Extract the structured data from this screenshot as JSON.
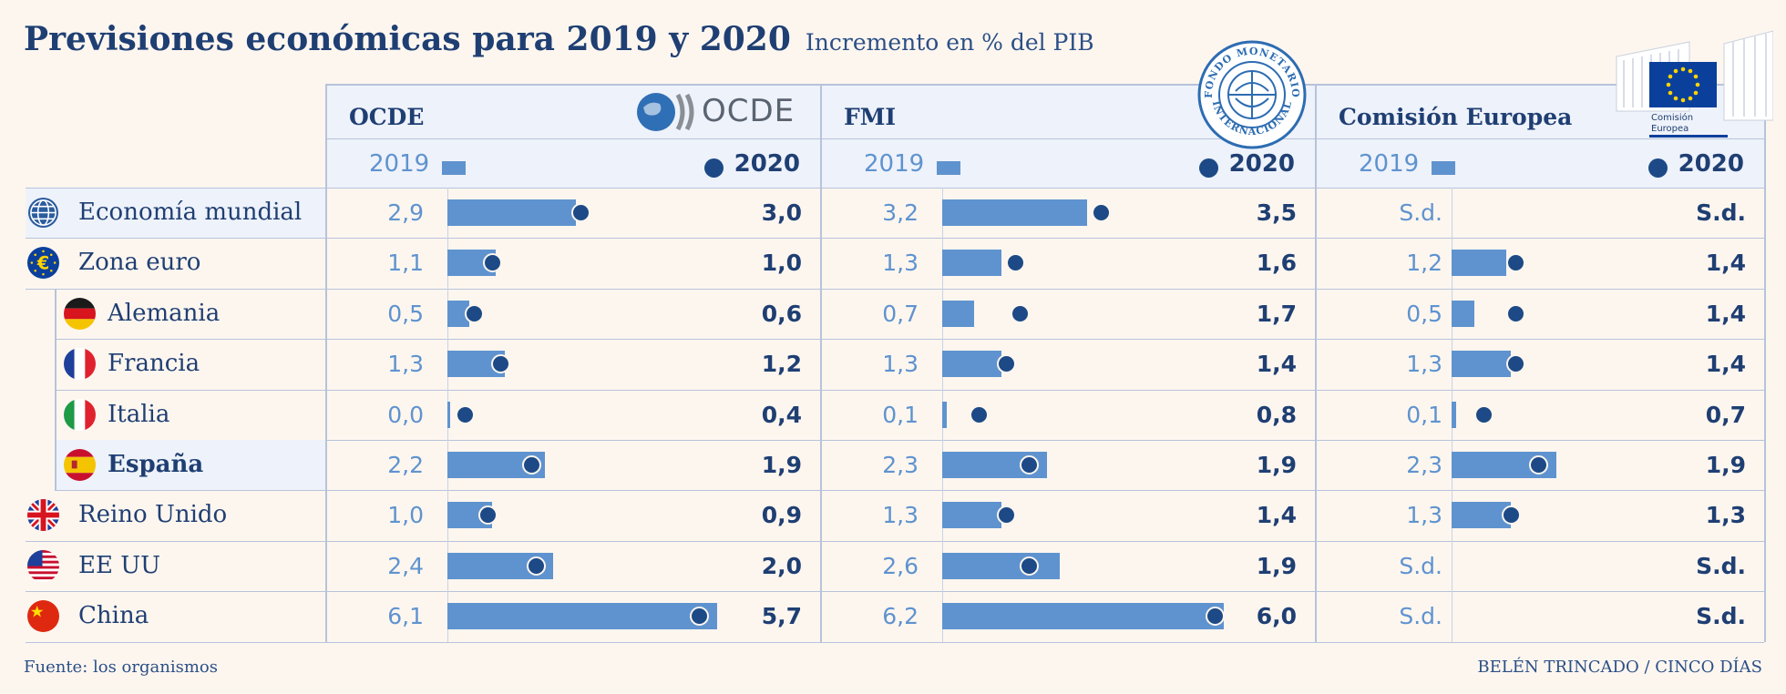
{
  "title": "Previsiones económicas para 2019 y 2020",
  "subtitle": "Incremento en % del PIB",
  "footer": {
    "source": "Fuente: los organismos",
    "credit": "BELÉN TRINCADO / CINCO DÍAS"
  },
  "colors": {
    "bar_2019": "#5f93cf",
    "dot_2020": "#1d4a86",
    "text": "#1f3f73",
    "background": "#fdf6ef"
  },
  "logos": {
    "ocde": "OCDE",
    "ec": [
      "Comisión",
      "Europea"
    ],
    "imf": "FONDO MONETARIO INTERNACIONAL"
  },
  "chart_data": {
    "type": "bar",
    "panels": [
      {
        "name": "OCDE",
        "year_2019": "2019",
        "year_2020": "2020"
      },
      {
        "name": "FMI",
        "year_2019": "2019",
        "year_2020": "2020"
      },
      {
        "name": "Comisión Europea",
        "year_2019": "2019",
        "year_2020": "2020"
      }
    ],
    "categories": [
      "Economía mundial",
      "Zona euro",
      "Alemania",
      "Francia",
      "Italia",
      "España",
      "Reino Unido",
      "EE UU",
      "China"
    ],
    "series": [
      {
        "name": "2019",
        "source": "OCDE",
        "labels": [
          "2,9",
          "1,1",
          "0,5",
          "1,3",
          "0,0",
          "2,2",
          "1,0",
          "2,4",
          "6,1"
        ],
        "values": [
          2.9,
          1.1,
          0.5,
          1.3,
          0.0,
          2.2,
          1.0,
          2.4,
          6.1
        ]
      },
      {
        "name": "2020",
        "source": "OCDE",
        "labels": [
          "3,0",
          "1,0",
          "0,6",
          "1,2",
          "0,4",
          "1,9",
          "0,9",
          "2,0",
          "5,7"
        ],
        "values": [
          3.0,
          1.0,
          0.6,
          1.2,
          0.4,
          1.9,
          0.9,
          2.0,
          5.7
        ]
      },
      {
        "name": "2019",
        "source": "FMI",
        "labels": [
          "3,2",
          "1,3",
          "0,7",
          "1,3",
          "0,1",
          "2,3",
          "1,3",
          "2,6",
          "6,2"
        ],
        "values": [
          3.2,
          1.3,
          0.7,
          1.3,
          0.1,
          2.3,
          1.3,
          2.6,
          6.2
        ]
      },
      {
        "name": "2020",
        "source": "FMI",
        "labels": [
          "3,5",
          "1,6",
          "1,7",
          "1,4",
          "0,8",
          "1,9",
          "1,4",
          "1,9",
          "6,0"
        ],
        "values": [
          3.5,
          1.6,
          1.7,
          1.4,
          0.8,
          1.9,
          1.4,
          1.9,
          6.0
        ]
      },
      {
        "name": "2019",
        "source": "Comisión Europea",
        "labels": [
          "S.d.",
          "1,2",
          "0,5",
          "1,3",
          "0,1",
          "2,3",
          "1,3",
          "S.d.",
          "S.d."
        ],
        "values": [
          null,
          1.2,
          0.5,
          1.3,
          0.1,
          2.3,
          1.3,
          null,
          null
        ]
      },
      {
        "name": "2020",
        "source": "Comisión Europea",
        "labels": [
          "S.d.",
          "1,4",
          "1,4",
          "1,4",
          "0,7",
          "1,9",
          "1,3",
          "S.d.",
          "S.d."
        ],
        "values": [
          null,
          1.4,
          1.4,
          1.4,
          0.7,
          1.9,
          1.3,
          null,
          null
        ]
      }
    ],
    "countries": [
      {
        "name": "Economía mundial",
        "icon": "globe-icon",
        "highlight": true,
        "indent": false,
        "bold": false
      },
      {
        "name": "Zona euro",
        "icon": "euro-flag-icon",
        "highlight": false,
        "indent": false,
        "bold": false
      },
      {
        "name": "Alemania",
        "icon": "germany-flag-icon",
        "highlight": false,
        "indent": true,
        "bold": false
      },
      {
        "name": "Francia",
        "icon": "france-flag-icon",
        "highlight": false,
        "indent": true,
        "bold": false
      },
      {
        "name": "Italia",
        "icon": "italy-flag-icon",
        "highlight": false,
        "indent": true,
        "bold": false
      },
      {
        "name": "España",
        "icon": "spain-flag-icon",
        "highlight": true,
        "indent": true,
        "bold": true
      },
      {
        "name": "Reino Unido",
        "icon": "uk-flag-icon",
        "highlight": false,
        "indent": false,
        "bold": false
      },
      {
        "name": "EE UU",
        "icon": "usa-flag-icon",
        "highlight": false,
        "indent": false,
        "bold": false
      },
      {
        "name": "China",
        "icon": "china-flag-icon",
        "highlight": false,
        "indent": false,
        "bold": false
      }
    ],
    "xlim": [
      0,
      6.2
    ],
    "grid": false,
    "legend": "top"
  }
}
